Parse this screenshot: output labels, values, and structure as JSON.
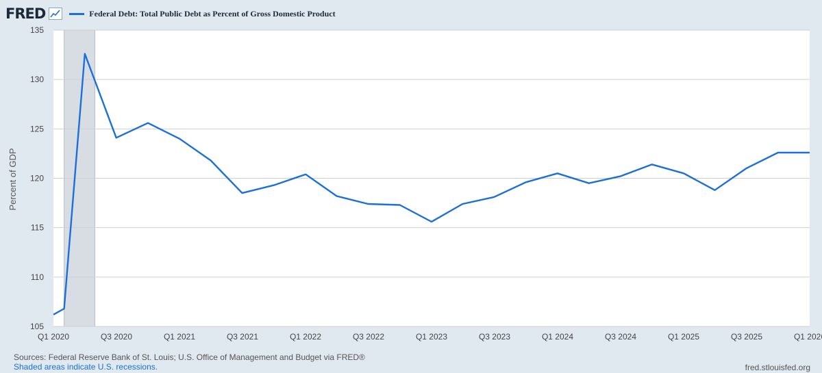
{
  "header": {
    "logo_text": "FRED",
    "logo_icon": "line-graph-icon"
  },
  "chart_data": {
    "type": "line",
    "title": "Federal Debt: Total Public Debt as Percent of Gross Domestic Product",
    "xlabel": "",
    "ylabel": "Percent of GDP",
    "ylim": [
      105,
      135
    ],
    "yticks": [
      105,
      110,
      115,
      120,
      125,
      130,
      135
    ],
    "xticks": [
      "Q1 2020",
      "Q3 2020",
      "Q1 2021",
      "Q3 2021",
      "Q1 2022",
      "Q3 2022",
      "Q1 2023",
      "Q3 2023",
      "Q1 2024",
      "Q3 2024",
      "Q1 2025",
      "Q3 2025",
      "Q1 2026"
    ],
    "grid": true,
    "legend_position": "top",
    "line_color": "#1a6fd8",
    "recession_color": "#d8dde3",
    "x_start": "2020-01-01",
    "x_end": "2026-01-01",
    "recessions": [
      {
        "start": "2020-02-01",
        "end": "2020-04-30"
      }
    ],
    "series": [
      {
        "name": "Federal Debt: Total Public Debt as Percent of Gross Domestic Product",
        "x": [
          "2020-01-01",
          "2020-02-01",
          "2020-04-01",
          "2020-07-01",
          "2020-10-01",
          "2021-01-01",
          "2021-04-01",
          "2021-07-01",
          "2021-10-01",
          "2022-01-01",
          "2022-04-01",
          "2022-07-01",
          "2022-10-01",
          "2023-01-01",
          "2023-04-01",
          "2023-07-01",
          "2023-10-01",
          "2024-01-01",
          "2024-04-01",
          "2024-07-01",
          "2024-10-01",
          "2025-01-01",
          "2025-04-01",
          "2025-07-01",
          "2025-10-01",
          "2026-01-01"
        ],
        "values": [
          106.2,
          106.8,
          132.6,
          124.1,
          125.6,
          124.0,
          121.8,
          118.5,
          119.3,
          120.4,
          118.2,
          117.4,
          117.3,
          115.6,
          117.4,
          118.1,
          119.6,
          120.5,
          119.5,
          120.2,
          121.4,
          120.5,
          118.8,
          121.0,
          122.6,
          122.6
        ]
      }
    ]
  },
  "footer": {
    "sources": "Sources: Federal Reserve Bank of St. Louis; U.S. Office of Management and Budget via FRED®",
    "recession_note": "Shaded areas indicate U.S. recessions.",
    "site": "fred.stlouisfed.org"
  }
}
